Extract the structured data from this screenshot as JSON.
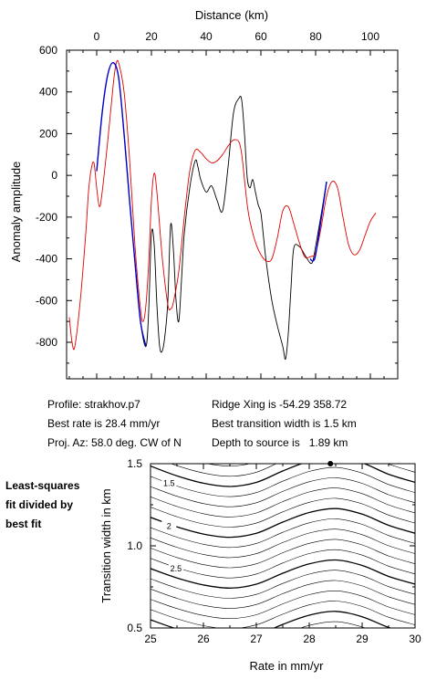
{
  "chart_data": [
    {
      "type": "line",
      "xlabel": "Distance (km)",
      "ylabel": "Anomaly amplitude",
      "xlim": [
        -11,
        110
      ],
      "ylim": [
        -975,
        600
      ],
      "xticks": [
        0,
        20,
        40,
        60,
        80,
        100
      ],
      "yticks": [
        600,
        400,
        200,
        0,
        -200,
        -400,
        -600,
        -800
      ],
      "xtick_labels": [
        "0",
        "20",
        "40",
        "60",
        "80",
        "100"
      ],
      "ytick_labels": [
        "600",
        "400",
        "200",
        "0",
        "-200",
        "-400",
        "-600",
        "-800"
      ],
      "x_axis_position": "top",
      "grid": false,
      "series": [
        {
          "color": "#000000",
          "x": [
            0,
            2,
            4,
            6,
            8,
            10,
            12,
            14,
            16,
            18,
            19,
            20,
            21,
            22,
            23,
            24,
            25,
            26,
            27,
            28,
            29,
            30,
            31,
            32,
            34,
            36,
            37,
            38,
            40,
            42,
            44,
            46,
            48,
            50,
            52,
            53,
            54,
            55,
            56,
            57,
            58,
            59,
            60,
            61,
            62,
            64,
            66,
            68,
            69,
            70,
            71,
            72,
            74,
            76,
            78,
            79,
            80,
            82,
            84
          ],
          "values": [
            20,
            300,
            480,
            540,
            470,
            200,
            -120,
            -420,
            -700,
            -820,
            -650,
            -280,
            -330,
            -620,
            -820,
            -840,
            -760,
            -600,
            -240,
            -350,
            -600,
            -700,
            -500,
            -280,
            -60,
            70,
            40,
            -20,
            -80,
            -50,
            -120,
            -170,
            40,
            300,
            370,
            360,
            200,
            -10,
            -60,
            -20,
            -80,
            -140,
            -180,
            -300,
            -420,
            -600,
            -720,
            -820,
            -880,
            -760,
            -540,
            -350,
            -340,
            -380,
            -420,
            -410,
            -340,
            -190,
            -30
          ]
        },
        {
          "color": "#e00000",
          "x": [
            -10,
            -9,
            -8,
            -6,
            -4,
            -3,
            -2,
            -1,
            0,
            1,
            2,
            4,
            6,
            7,
            8,
            10,
            12,
            14,
            16,
            17,
            18,
            19,
            20,
            21,
            22,
            24,
            26,
            27,
            28,
            30,
            32,
            34,
            36,
            38,
            40,
            42,
            44,
            46,
            48,
            50,
            52,
            53,
            54,
            55,
            56,
            58,
            60,
            62,
            64,
            66,
            68,
            70,
            72,
            74,
            76,
            78,
            80,
            82,
            84,
            86,
            88,
            90,
            92,
            94,
            96,
            98,
            100,
            102
          ],
          "values": [
            -680,
            -800,
            -820,
            -600,
            -280,
            -80,
            30,
            60,
            -60,
            -150,
            -80,
            160,
            430,
            530,
            540,
            400,
            80,
            -340,
            -640,
            -700,
            -620,
            -420,
            -120,
            10,
            -80,
            -400,
            -620,
            -640,
            -610,
            -460,
            -200,
            20,
            120,
            110,
            80,
            60,
            70,
            100,
            140,
            170,
            160,
            100,
            -20,
            -140,
            -220,
            -320,
            -380,
            -410,
            -400,
            -300,
            -170,
            -150,
            -230,
            -320,
            -390,
            -390,
            -370,
            -250,
            -100,
            -30,
            -60,
            -200,
            -330,
            -380,
            -360,
            -290,
            -220,
            -180
          ]
        },
        {
          "color": "#0000cc",
          "x": [
            0,
            2,
            4,
            6,
            8,
            10,
            12,
            14,
            16,
            18
          ],
          "values": [
            20,
            300,
            480,
            540,
            470,
            200,
            -120,
            -420,
            -700,
            -820
          ]
        },
        {
          "color": "#0000cc",
          "x": [
            78,
            79,
            80,
            82,
            84
          ],
          "values": [
            -400,
            -410,
            -380,
            -210,
            -30
          ]
        }
      ]
    },
    {
      "type": "contour",
      "xlabel": "Rate in mm/yr",
      "ylabel": "Transition width in km",
      "xlim": [
        25,
        30
      ],
      "ylim": [
        0.5,
        1.5
      ],
      "xticks": [
        25,
        26,
        27,
        28,
        29,
        30
      ],
      "yticks": [
        0.5,
        1.0,
        1.5
      ],
      "xtick_labels": [
        "25",
        "26",
        "27",
        "28",
        "29",
        "30"
      ],
      "ytick_labels": [
        "0.5",
        "1.0",
        "1.5"
      ],
      "contour_labels": [
        "1.5",
        "2",
        "2.5"
      ],
      "best_fit": {
        "rate": 28.4,
        "width": 1.5
      }
    }
  ],
  "info": {
    "profile": "Profile: strakhov.p7",
    "best_rate": "Best rate is 28.4 mm/yr",
    "proj_az": "Proj. Az: 58.0 deg. CW of N",
    "ridge_xing": "Ridge Xing is -54.29 358.72",
    "transition_width": "Best transition width is 1.5 km",
    "depth": "Depth to source is   1.89 km"
  },
  "side_note": [
    "Least-squares",
    "fit divided by",
    "best fit"
  ]
}
